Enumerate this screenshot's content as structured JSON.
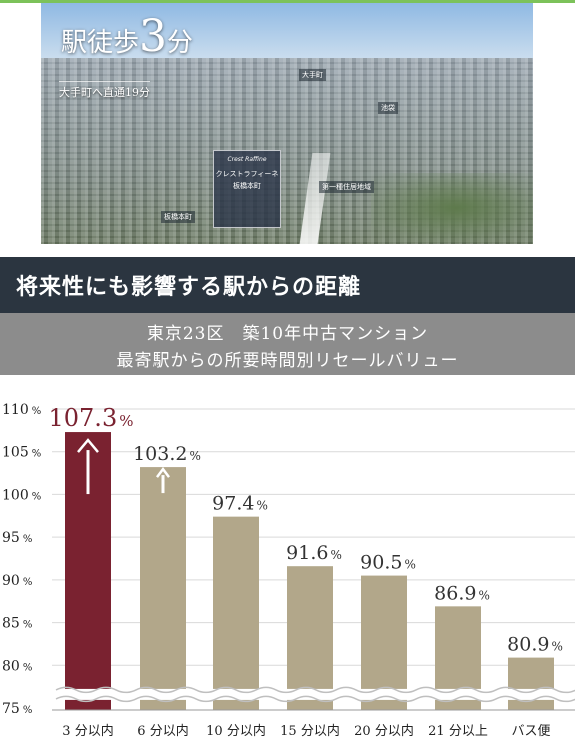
{
  "photo": {
    "title_prefix": "駅徒歩",
    "title_number": "3",
    "title_suffix": "分",
    "subtitle": "大手町へ直通19分",
    "labels": [
      "大手町",
      "池袋",
      "第一種住居地域",
      "板橋本町"
    ],
    "brand": {
      "tagline": "Crest Raffine",
      "name": "クレストラフィーネ",
      "location": "板橋本町"
    }
  },
  "banner": {
    "text": "将来性にも影響する駅からの距離"
  },
  "subheading": {
    "line1": "東京23区　築10年中古マンション",
    "line2": "最寄駅からの所要時間別リセールバリュー"
  },
  "colors": {
    "highlight_bar": "#7a2230",
    "bar": "#b2a78a",
    "banner": "#2b3540",
    "subhead": "#8c8c8c"
  },
  "chart_data": {
    "type": "bar",
    "categories": [
      "3 分以内",
      "6 分以内",
      "10 分以内",
      "15 分以内",
      "20 分以内",
      "21 分以上",
      "バス便"
    ],
    "values": [
      107.3,
      103.2,
      97.4,
      91.6,
      90.5,
      86.9,
      80.9
    ],
    "value_labels": [
      {
        "num": "107.3",
        "unit": "%"
      },
      {
        "num": "103.2",
        "unit": "%"
      },
      {
        "num": "97.4",
        "unit": "%"
      },
      {
        "num": "91.6",
        "unit": "%"
      },
      {
        "num": "90.5",
        "unit": "%"
      },
      {
        "num": "86.9",
        "unit": "%"
      },
      {
        "num": "80.9",
        "unit": "%"
      }
    ],
    "highlight_index": 0,
    "arrows_on": [
      0,
      1
    ],
    "yticks": [
      {
        "value": 110,
        "label": "110"
      },
      {
        "value": 105,
        "label": "105"
      },
      {
        "value": 100,
        "label": "100"
      },
      {
        "value": 95,
        "label": "95"
      },
      {
        "value": 90,
        "label": "90"
      },
      {
        "value": 85,
        "label": "85"
      },
      {
        "value": 80,
        "label": "80"
      },
      {
        "value": 75,
        "label": "75"
      }
    ],
    "tick_unit": "%",
    "ylim": [
      75,
      111
    ],
    "axis_break": true,
    "grid": true
  }
}
